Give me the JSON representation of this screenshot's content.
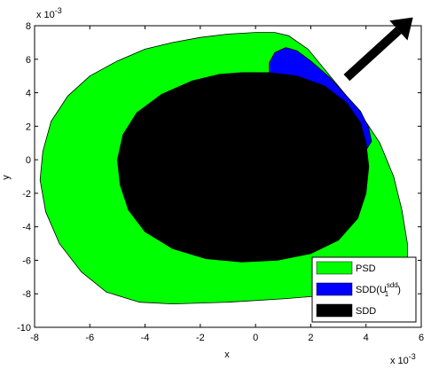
{
  "chart_data": {
    "type": "area",
    "xlabel": "x",
    "ylabel": "y",
    "x_exponent": "x 10",
    "x_exponent_power": "-3",
    "y_exponent": "x 10",
    "y_exponent_power": "-3",
    "xlim": [
      -8,
      6
    ],
    "ylim": [
      -10,
      8
    ],
    "xticks": [
      -8,
      -6,
      -4,
      -2,
      0,
      2,
      4,
      6
    ],
    "yticks": [
      -10,
      -8,
      -6,
      -4,
      -2,
      0,
      2,
      4,
      6,
      8
    ],
    "legend_position": "bottom-right",
    "arrow": {
      "from": [
        3.3,
        4.9
      ],
      "to": [
        5.7,
        8.5
      ],
      "color": "#000000"
    },
    "series": [
      {
        "name": "PSD",
        "legend_label": "PSD",
        "color": "#00ff00",
        "points": [
          [
            0.7,
            7.6
          ],
          [
            0,
            7.6
          ],
          [
            -1,
            7.5
          ],
          [
            -2,
            7.3
          ],
          [
            -3,
            7.0
          ],
          [
            -4,
            6.6
          ],
          [
            -5,
            5.9
          ],
          [
            -6,
            5.0
          ],
          [
            -6.8,
            3.8
          ],
          [
            -7.4,
            2.3
          ],
          [
            -7.7,
            0.5
          ],
          [
            -7.8,
            -1.2
          ],
          [
            -7.6,
            -3.1
          ],
          [
            -7.1,
            -5.0
          ],
          [
            -6.3,
            -6.7
          ],
          [
            -5.4,
            -7.9
          ],
          [
            -4.2,
            -8.5
          ],
          [
            -3,
            -8.6
          ],
          [
            -1,
            -8.5
          ],
          [
            1,
            -8.3
          ],
          [
            2.5,
            -8.1
          ],
          [
            4,
            -7.8
          ],
          [
            5.2,
            -7.2
          ],
          [
            5.5,
            -6.5
          ],
          [
            5.5,
            -5
          ],
          [
            5.3,
            -3
          ],
          [
            5,
            -1
          ],
          [
            4.5,
            1
          ],
          [
            3.7,
            3
          ],
          [
            2.7,
            5
          ],
          [
            1.9,
            6.6
          ],
          [
            1.2,
            7.4
          ]
        ]
      },
      {
        "name": "SDD(U1sdd)",
        "legend_label": "SDD(U",
        "legend_sub": "1",
        "legend_sup": "sdd",
        "legend_close": ")",
        "color": "#0000ff",
        "points": [
          [
            1.1,
            6.7
          ],
          [
            1.5,
            6.5
          ],
          [
            2.0,
            5.9
          ],
          [
            2.7,
            4.9
          ],
          [
            3.3,
            3.8
          ],
          [
            3.8,
            2.9
          ],
          [
            4.1,
            1.9
          ],
          [
            4.2,
            1.1
          ],
          [
            3.9,
            0.3
          ],
          [
            3.4,
            0.2
          ],
          [
            2.7,
            0.4
          ],
          [
            2.0,
            1.0
          ],
          [
            1.3,
            2.2
          ],
          [
            0.8,
            3.3
          ],
          [
            0.5,
            4.6
          ],
          [
            0.5,
            5.8
          ],
          [
            0.7,
            6.4
          ]
        ]
      },
      {
        "name": "SDD",
        "legend_label": "SDD",
        "color": "#000000",
        "points": [
          [
            -0.5,
            5.2
          ],
          [
            0.5,
            5.2
          ],
          [
            1.5,
            5.0
          ],
          [
            2.5,
            4.4
          ],
          [
            3.3,
            3.4
          ],
          [
            3.8,
            2.2
          ],
          [
            4.0,
            1.0
          ],
          [
            4.1,
            -0.4
          ],
          [
            4.0,
            -2.0
          ],
          [
            3.7,
            -3.5
          ],
          [
            3.0,
            -4.8
          ],
          [
            2.0,
            -5.6
          ],
          [
            0.8,
            -6.0
          ],
          [
            -0.5,
            -6.1
          ],
          [
            -1.8,
            -5.9
          ],
          [
            -3.0,
            -5.3
          ],
          [
            -4.0,
            -4.3
          ],
          [
            -4.6,
            -3.0
          ],
          [
            -4.9,
            -1.5
          ],
          [
            -5.0,
            0
          ],
          [
            -4.8,
            1.5
          ],
          [
            -4.3,
            2.8
          ],
          [
            -3.4,
            3.9
          ],
          [
            -2.3,
            4.7
          ],
          [
            -1.3,
            5.1
          ]
        ]
      }
    ]
  }
}
